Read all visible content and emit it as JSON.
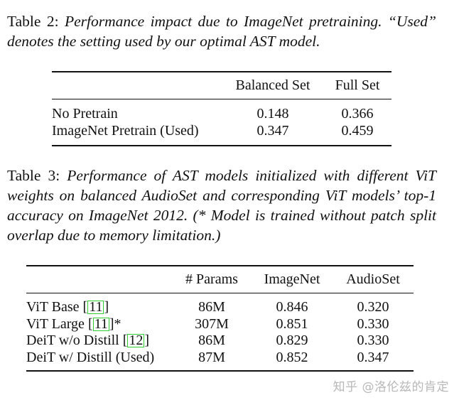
{
  "table2": {
    "caption_label": "Table 2:",
    "caption_text": "Performance impact due to ImageNet pretraining. “Used” denotes the setting used by our optimal AST model.",
    "headers": [
      "",
      "Balanced Set",
      "Full Set"
    ],
    "rows": [
      [
        "No Pretrain",
        "0.148",
        "0.366"
      ],
      [
        "ImageNet Pretrain (Used)",
        "0.347",
        "0.459"
      ]
    ]
  },
  "table3": {
    "caption_label": "Table 3:",
    "caption_text": "Performance of AST models initialized with different ViT weights on balanced AudioSet and corresponding ViT models’ top-1 accuracy on ImageNet 2012. (* Model is trained without patch split overlap due to memory limitation.)",
    "headers": [
      "",
      "# Params",
      "ImageNet",
      "AudioSet"
    ],
    "rows": [
      {
        "name": "ViT Base",
        "cite": "11",
        "suffix": "",
        "params": "86M",
        "imagenet": "0.846",
        "audioset": "0.320"
      },
      {
        "name": "ViT Large",
        "cite": "11",
        "suffix": "*",
        "params": "307M",
        "imagenet": "0.851",
        "audioset": "0.330"
      },
      {
        "name": "DeiT w/o Distill",
        "cite": "12",
        "suffix": "",
        "params": "86M",
        "imagenet": "0.829",
        "audioset": "0.330"
      },
      {
        "name": "DeiT w/ Distill (Used)",
        "cite": "",
        "suffix": "",
        "params": "87M",
        "imagenet": "0.852",
        "audioset": "0.347"
      }
    ]
  },
  "watermark": "知乎 @洛伦兹的肯定",
  "colors": {
    "citation_box": "#2ecc2e",
    "text": "#111111",
    "watermark": "#b8b8b8"
  }
}
